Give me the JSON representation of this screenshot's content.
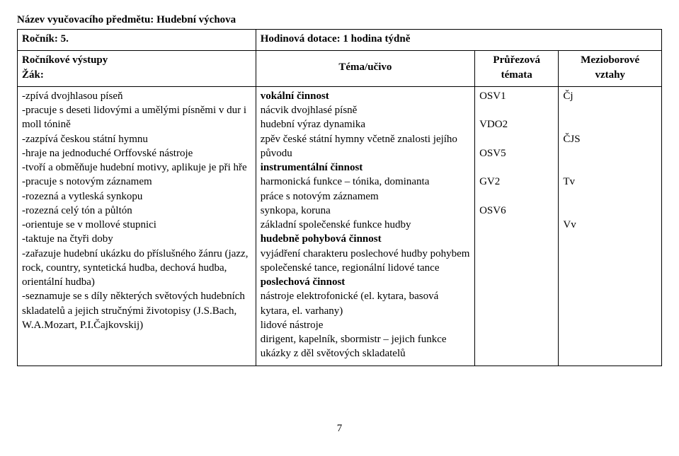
{
  "header": {
    "subject_label": "Název vyučovacího předmětu:",
    "subject_value": "Hudební výchova",
    "grade_label": "Ročník:",
    "grade_value": "5.",
    "allocation_label": "Hodinová dotace:",
    "allocation_value": "1 hodina týdně"
  },
  "table": {
    "head": {
      "col1_line1": "Ročníkové výstupy",
      "col1_line2": "Žák:",
      "col2": "Téma/učivo",
      "col3_line1": "Průřezová",
      "col3_line2": "témata",
      "col4_line1": "Mezioborové",
      "col4_line2": "vztahy"
    },
    "col1": {
      "l1": "-zpívá dvojhlasou píseň",
      "l2": "-pracuje s deseti lidovými a umělými písněmi v dur i moll tónině",
      "l3": "-zazpívá českou státní hymnu",
      "l4": "-hraje na jednoduché Orffovské nástroje",
      "l5": "-tvoří a obměňuje hudební motivy, aplikuje je při hře",
      "l6": "-pracuje s notovým záznamem",
      "l7": "-rozezná a vytleská synkopu",
      "l8": "-rozezná celý tón a půltón",
      "l9": "-orientuje se v mollové stupnici",
      "l10": "-taktuje na čtyři doby",
      "l11": "-zařazuje hudební ukázku do příslušného žánru (jazz, rock, country, syntetická hudba, dechová hudba, orientální hudba)",
      "l12": "-seznamuje se s díly některých světových hudebních skladatelů a jejich stručnými životopisy (J.S.Bach, W.A.Mozart, P.I.Čajkovskij)"
    },
    "col2": {
      "l1": "vokální činnost",
      "l2": "nácvik dvojhlasé písně",
      "l3": "hudební výraz dynamika",
      "l4": "zpěv české státní hymny včetně znalosti jejího původu",
      "l5": "instrumentální činnost",
      "l6": "harmonická funkce – tónika, dominanta",
      "l7": "práce s notovým záznamem",
      "l8": "synkopa, koruna",
      "l9": "základní společenské funkce hudby",
      "l10": "hudebně pohybová činnost",
      "l11": "vyjádření charakteru poslechové hudby pohybem",
      "l12": "společenské tance, regionální lidové tance",
      "l13": "poslechová činnost",
      "l14": "nástroje elektrofonické (el. kytara, basová kytara, el. varhany)",
      "l15": "lidové nástroje",
      "l16": "dirigent, kapelník, sbormistr – jejich funkce",
      "l17": "ukázky z děl světových skladatelů"
    },
    "col3": {
      "l1": "OSV1",
      "l2": "",
      "l3": "VDO2",
      "l4": "",
      "l5": "OSV5",
      "l6": "",
      "l7": "GV2",
      "l8": "",
      "l9": "OSV6"
    },
    "col4": {
      "l1": "Čj",
      "l2": "",
      "l3": "",
      "l4": "ČJS",
      "l5": "",
      "l6": "",
      "l7": "Tv",
      "l8": "",
      "l9": "",
      "l10": "Vv"
    }
  },
  "page_number": "7"
}
